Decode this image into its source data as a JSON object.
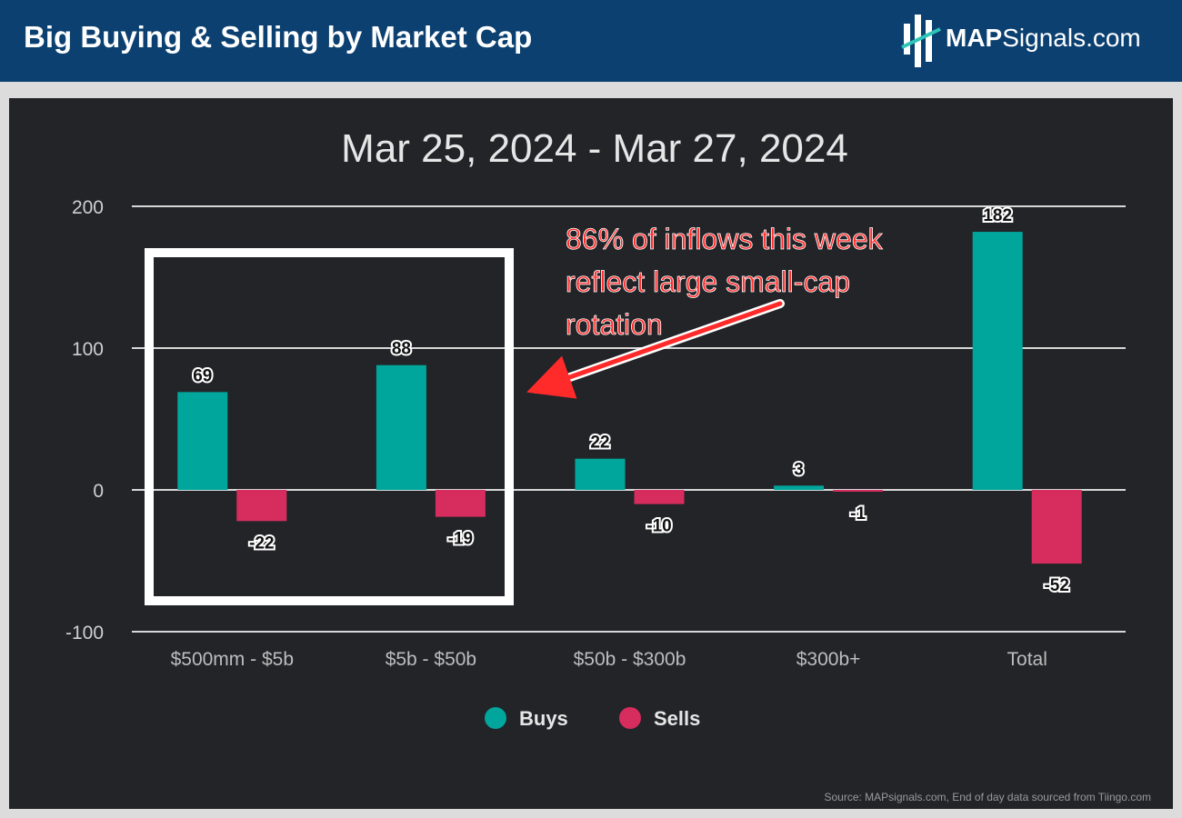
{
  "header": {
    "title": "Big Buying & Selling by Market Cap",
    "logo_bold": "MAP",
    "logo_rest": "Signals.com"
  },
  "chart_data": {
    "type": "bar",
    "title": "Mar 25, 2024 - Mar 27, 2024",
    "categories": [
      "$500mm - $5b",
      "$5b - $50b",
      "$50b - $300b",
      "$300b+",
      "Total"
    ],
    "series": [
      {
        "name": "Buys",
        "color": "#00a69c",
        "values": [
          69,
          88,
          22,
          3,
          182
        ]
      },
      {
        "name": "Sells",
        "color": "#d62c5e",
        "values": [
          -22,
          -19,
          -10,
          -1,
          -52
        ]
      }
    ],
    "ylim": [
      -100,
      200
    ],
    "yticks": [
      -100,
      0,
      100,
      200
    ],
    "grid": true,
    "legend_position": "bottom-center",
    "annotation": {
      "lines": [
        "86% of inflows this week",
        "reflect large small-cap",
        "rotation"
      ],
      "color": "#ff2a2a",
      "highlighted_categories": [
        "$500mm - $5b",
        "$5b - $50b"
      ]
    }
  },
  "footer": {
    "source": "Source: MAPsignals.com, End of day data sourced from Tiingo.com"
  }
}
